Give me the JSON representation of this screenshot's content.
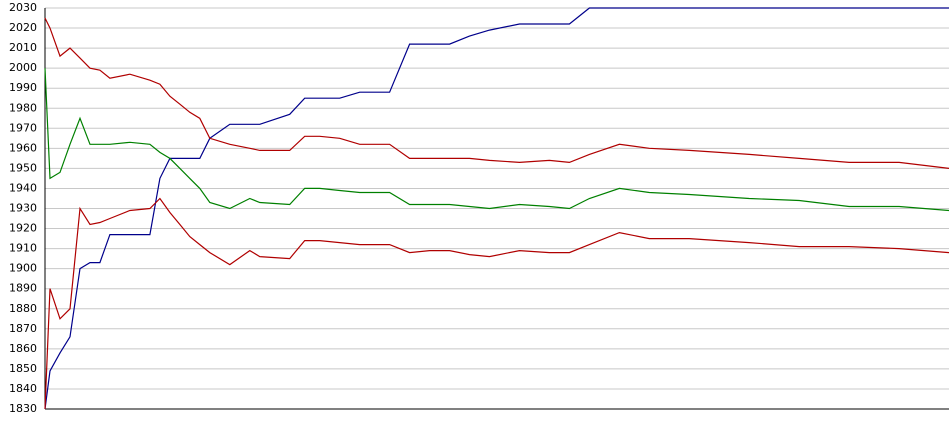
{
  "chart_data": {
    "type": "line",
    "x": [
      0,
      5,
      15,
      25,
      35,
      45,
      55,
      65,
      85,
      105,
      115,
      125,
      135,
      145,
      155,
      165,
      185,
      205,
      215,
      245,
      260,
      275,
      295,
      315,
      335,
      345,
      365,
      385,
      405,
      425,
      445,
      475,
      505,
      525,
      545,
      575,
      605,
      645,
      705,
      755,
      805,
      855,
      905
    ],
    "xlim": [
      0,
      905
    ],
    "ylim": [
      1830,
      2030
    ],
    "yticks": [
      1830,
      1840,
      1850,
      1860,
      1870,
      1880,
      1890,
      1900,
      1910,
      1920,
      1930,
      1940,
      1950,
      1960,
      1970,
      1980,
      1990,
      2000,
      2010,
      2020,
      2030
    ],
    "grid": true,
    "series": [
      {
        "color": "#00008b",
        "values": [
          1830,
          1849,
          1858,
          1866,
          1900,
          1903,
          1903,
          1917,
          1917,
          1917,
          1945,
          1955,
          1955,
          1955,
          1955,
          1965,
          1972,
          1972,
          1972,
          1977,
          1985,
          1985,
          1985,
          1988,
          1988,
          1988,
          2012,
          2012,
          2012,
          2016,
          2019,
          2022,
          2022,
          2022,
          2030,
          2030,
          2030,
          2030,
          2030,
          2030,
          2030,
          2030,
          2030
        ]
      },
      {
        "color": "#b00000",
        "values": [
          2025,
          2020,
          2006,
          2010,
          2005,
          2000,
          1999,
          1995,
          1997,
          1994,
          1992,
          1986,
          1982,
          1978,
          1975,
          1965,
          1962,
          1960,
          1959,
          1959,
          1966,
          1966,
          1965,
          1962,
          1962,
          1962,
          1955,
          1955,
          1955,
          1955,
          1954,
          1953,
          1954,
          1953,
          1957,
          1962,
          1960,
          1959,
          1957,
          1955,
          1953,
          1953,
          1950
        ]
      },
      {
        "color": "#008000",
        "values": [
          2000,
          1945,
          1948,
          1962,
          1975,
          1962,
          1962,
          1962,
          1963,
          1962,
          1958,
          1955,
          1950,
          1945,
          1940,
          1933,
          1930,
          1935,
          1933,
          1932,
          1940,
          1940,
          1939,
          1938,
          1938,
          1938,
          1932,
          1932,
          1932,
          1931,
          1930,
          1932,
          1931,
          1930,
          1935,
          1940,
          1938,
          1937,
          1935,
          1934,
          1931,
          1931,
          1929
        ]
      },
      {
        "color": "#b00000",
        "values": [
          1830,
          1890,
          1875,
          1880,
          1930,
          1922,
          1923,
          1925,
          1929,
          1930,
          1935,
          1928,
          1922,
          1916,
          1912,
          1908,
          1902,
          1909,
          1906,
          1905,
          1914,
          1914,
          1913,
          1912,
          1912,
          1912,
          1908,
          1909,
          1909,
          1907,
          1906,
          1909,
          1908,
          1908,
          1912,
          1918,
          1915,
          1915,
          1913,
          1911,
          1911,
          1910,
          1908
        ]
      }
    ]
  }
}
